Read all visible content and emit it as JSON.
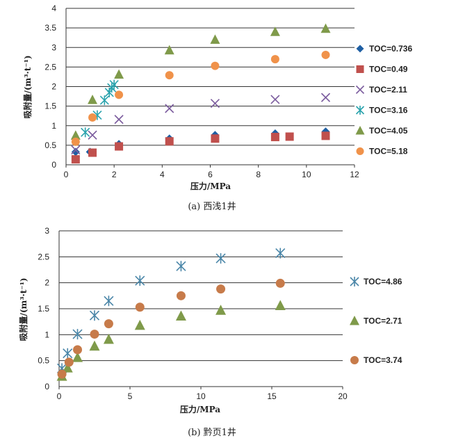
{
  "chart_data": [
    {
      "type": "scatter",
      "caption": "(a) 西浅1井",
      "xlabel": "压力/MPa",
      "ylabel": "吸附量/(m³·t⁻¹)",
      "xlim": [
        0,
        12
      ],
      "ylim": [
        0,
        4
      ],
      "xticks": [
        "0",
        "2",
        "4",
        "6",
        "8",
        "10",
        "12"
      ],
      "yticks": [
        "0",
        "0.5",
        "1",
        "1.5",
        "2",
        "2.5",
        "3",
        "3.5",
        "4"
      ],
      "grid": "horizontal",
      "legend_position": "right",
      "series": [
        {
          "name": "TOC=0.736",
          "marker": "diamond",
          "color": "#1f5fa3",
          "x": [
            0.4,
            1.0,
            2.2,
            4.3,
            6.2,
            8.7,
            10.8
          ],
          "y": [
            0.33,
            0.33,
            0.53,
            0.67,
            0.76,
            0.8,
            0.85
          ]
        },
        {
          "name": "TOC=0.49",
          "marker": "square",
          "color": "#c0504d",
          "x": [
            0.4,
            1.1,
            2.2,
            4.3,
            6.2,
            8.7,
            9.3,
            10.8
          ],
          "y": [
            0.14,
            0.31,
            0.47,
            0.6,
            0.67,
            0.71,
            0.72,
            0.74
          ]
        },
        {
          "name": "TOC=2.11",
          "marker": "x",
          "color": "#7b5c9e",
          "x": [
            0.4,
            1.1,
            2.2,
            4.3,
            6.2,
            8.7,
            10.8
          ],
          "y": [
            0.38,
            0.76,
            1.16,
            1.44,
            1.57,
            1.67,
            1.72
          ]
        },
        {
          "name": "TOC=3.16",
          "marker": "star",
          "color": "#2aa3ad",
          "x": [
            0.8,
            1.3,
            1.6,
            1.8,
            1.9,
            2.0
          ],
          "y": [
            0.83,
            1.27,
            1.65,
            1.85,
            1.97,
            2.05
          ]
        },
        {
          "name": "TOC=4.05",
          "marker": "triangle",
          "color": "#7f9a4a",
          "x": [
            0.4,
            1.1,
            2.2,
            4.3,
            6.2,
            8.7,
            10.8
          ],
          "y": [
            0.75,
            1.66,
            2.31,
            2.93,
            3.2,
            3.4,
            3.48
          ]
        },
        {
          "name": "TOC=5.18",
          "marker": "circle",
          "color": "#f0924a",
          "x": [
            0.4,
            1.1,
            2.2,
            4.3,
            6.2,
            8.7,
            10.8
          ],
          "y": [
            0.59,
            1.21,
            1.79,
            2.29,
            2.53,
            2.7,
            2.81
          ]
        }
      ]
    },
    {
      "type": "scatter",
      "caption": "(b) 黔页1井",
      "xlabel": "压力/MPa",
      "ylabel": "吸附量/(m³·t⁻¹)",
      "xlim": [
        0,
        20
      ],
      "ylim": [
        0,
        3
      ],
      "xticks": [
        "0",
        "5",
        "10",
        "15",
        "20"
      ],
      "yticks": [
        "0",
        "0.5",
        "1",
        "1.5",
        "2",
        "2.5",
        "3"
      ],
      "grid": "horizontal",
      "legend_position": "right",
      "series": [
        {
          "name": "TOC=4.86",
          "marker": "star",
          "color": "#4a86a8",
          "x": [
            0.2,
            0.6,
            1.3,
            2.5,
            3.5,
            5.7,
            8.6,
            11.4,
            15.6
          ],
          "y": [
            0.35,
            0.64,
            1.01,
            1.37,
            1.65,
            2.04,
            2.32,
            2.47,
            2.57
          ]
        },
        {
          "name": "TOC=2.71",
          "marker": "triangle",
          "color": "#7f9a4a",
          "x": [
            0.2,
            0.6,
            1.3,
            2.5,
            3.5,
            5.7,
            8.6,
            11.4,
            15.6
          ],
          "y": [
            0.2,
            0.36,
            0.56,
            0.78,
            0.91,
            1.18,
            1.36,
            1.47,
            1.56
          ]
        },
        {
          "name": "TOC=3.74",
          "marker": "circle",
          "color": "#c77b4a",
          "x": [
            0.2,
            0.7,
            1.3,
            2.5,
            3.5,
            5.7,
            8.6,
            11.4,
            15.6
          ],
          "y": [
            0.24,
            0.47,
            0.71,
            1.01,
            1.21,
            1.53,
            1.75,
            1.88,
            1.99
          ]
        }
      ]
    }
  ]
}
